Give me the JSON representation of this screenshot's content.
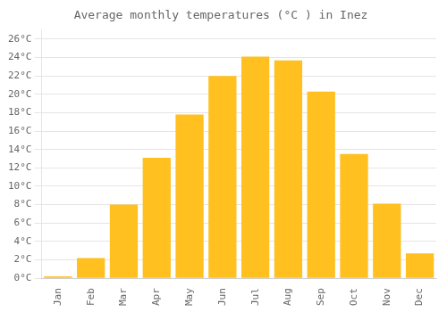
{
  "chart_data": {
    "type": "bar",
    "title": "Average monthly temperatures (°C ) in Inez",
    "categories": [
      "Jan",
      "Feb",
      "Mar",
      "Apr",
      "May",
      "Jun",
      "Jul",
      "Aug",
      "Sep",
      "Oct",
      "Nov",
      "Dec"
    ],
    "values": [
      0.2,
      2.2,
      8.0,
      13.1,
      17.8,
      22.0,
      24.1,
      23.7,
      20.3,
      13.5,
      8.1,
      2.7
    ],
    "color": "#FFC020",
    "ylim": [
      0,
      27
    ],
    "yticks": [
      {
        "value": 0,
        "label": "0°C"
      },
      {
        "value": 2,
        "label": "2°C"
      },
      {
        "value": 4,
        "label": "4°C"
      },
      {
        "value": 6,
        "label": "6°C"
      },
      {
        "value": 8,
        "label": "8°C"
      },
      {
        "value": 10,
        "label": "10°C"
      },
      {
        "value": 12,
        "label": "12°C"
      },
      {
        "value": 14,
        "label": "14°C"
      },
      {
        "value": 16,
        "label": "16°C"
      },
      {
        "value": 18,
        "label": "18°C"
      },
      {
        "value": 20,
        "label": "20°C"
      },
      {
        "value": 22,
        "label": "22°C"
      },
      {
        "value": 24,
        "label": "24°C"
      },
      {
        "value": 26,
        "label": "26°C"
      }
    ],
    "grid": true
  }
}
